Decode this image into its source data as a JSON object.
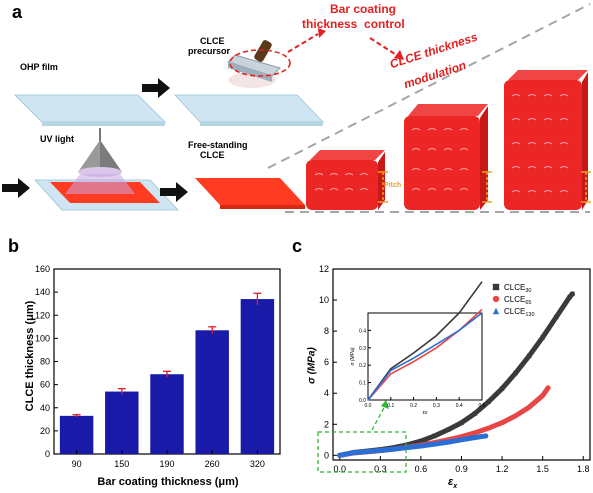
{
  "panel_a": {
    "label": "a",
    "ohp_film": "OHP film",
    "clce_precursor": [
      "CLCE",
      "precursor"
    ],
    "bar_coating": [
      "Bar coating",
      "thickness  control"
    ],
    "modulation": [
      "CLCE thickness",
      "modulation"
    ],
    "uv_light": "UV light",
    "free_standing": [
      "Free-standing",
      "CLCE"
    ],
    "pitch": "Pitch"
  },
  "panel_b": {
    "label": "b",
    "chart_data": {
      "type": "bar",
      "categories": [
        "90",
        "150",
        "190",
        "260",
        "320"
      ],
      "values": [
        33,
        54,
        69,
        107,
        134
      ],
      "errors": [
        1,
        2.5,
        2.5,
        3,
        5
      ],
      "xlabel": "Bar coating thickness (μm)",
      "ylabel": "CLCE thickness (μm)",
      "ylim": [
        0,
        160
      ],
      "yticks": [
        "0",
        "20",
        "40",
        "60",
        "80",
        "100",
        "120",
        "140",
        "160"
      ],
      "bar_color": "#1a1aa8",
      "error_color": "#e41f1f"
    }
  },
  "panel_c": {
    "label": "c",
    "chart_data": {
      "type": "scatter",
      "xlabel": "ε",
      "xlabel_sub": "x",
      "ylabel": "σ (MPa)",
      "xlim": [
        -0.05,
        1.85
      ],
      "ylim": [
        -0.3,
        12
      ],
      "xticks": [
        "0.0",
        "0.3",
        "0.6",
        "0.9",
        "1.2",
        "1.5",
        "1.8"
      ],
      "yticks": [
        "0",
        "2",
        "4",
        "6",
        "8",
        "10",
        "12"
      ],
      "series": [
        {
          "name": "CLCE",
          "sub": "30",
          "color": "#3a3a3a",
          "marker": "square",
          "x": [
            0,
            0.1,
            0.2,
            0.3,
            0.4,
            0.5,
            0.6,
            0.7,
            0.8,
            0.9,
            1.0,
            1.1,
            1.2,
            1.3,
            1.4,
            1.5,
            1.6,
            1.7,
            1.72
          ],
          "y": [
            0,
            0.18,
            0.27,
            0.37,
            0.5,
            0.68,
            0.92,
            1.25,
            1.65,
            2.1,
            2.7,
            3.45,
            4.3,
            5.3,
            6.4,
            7.6,
            8.9,
            10.2,
            10.4
          ]
        },
        {
          "name": "CLCE",
          "sub": "65",
          "color": "#e84545",
          "marker": "circle",
          "x": [
            0,
            0.1,
            0.2,
            0.3,
            0.4,
            0.5,
            0.6,
            0.7,
            0.8,
            0.9,
            1.0,
            1.1,
            1.2,
            1.3,
            1.4,
            1.5,
            1.54
          ],
          "y": [
            0,
            0.15,
            0.22,
            0.3,
            0.4,
            0.52,
            0.66,
            0.82,
            1.0,
            1.2,
            1.45,
            1.75,
            2.1,
            2.55,
            3.1,
            3.85,
            4.35
          ]
        },
        {
          "name": "CLCE",
          "sub": "130",
          "color": "#2a6fd6",
          "marker": "triangle",
          "x": [
            0,
            0.1,
            0.2,
            0.3,
            0.4,
            0.5,
            0.6,
            0.7,
            0.8,
            0.9,
            1.0,
            1.08
          ],
          "y": [
            0,
            0.17,
            0.24,
            0.32,
            0.4,
            0.5,
            0.6,
            0.72,
            0.85,
            1.0,
            1.15,
            1.25
          ]
        }
      ],
      "inset": {
        "xlabel": "εx",
        "ylabel": "σ (MPa)",
        "xticks": [
          "0.0",
          "0.1",
          "0.2",
          "0.3",
          "0.4",
          "0.5"
        ],
        "yticks": [
          "0.0",
          "0.1",
          "0.2",
          "0.3",
          "0.4"
        ],
        "xlim": [
          0,
          0.5
        ],
        "ylim": [
          0,
          0.5
        ]
      }
    }
  },
  "colors": {
    "film": "#cfe6f2",
    "clce_red": "#ff3b22",
    "block_red": "#ec2525",
    "arrow_black": "#111111",
    "pitch_orange": "#f0a020",
    "dashed_gray": "#a6a6a6",
    "annotation_red": "#e41f1f",
    "inset_green": "#2eb82e"
  },
  "icons": [
    "right-arrow-icon",
    "uv-lamp-icon",
    "coating-bar-icon"
  ]
}
